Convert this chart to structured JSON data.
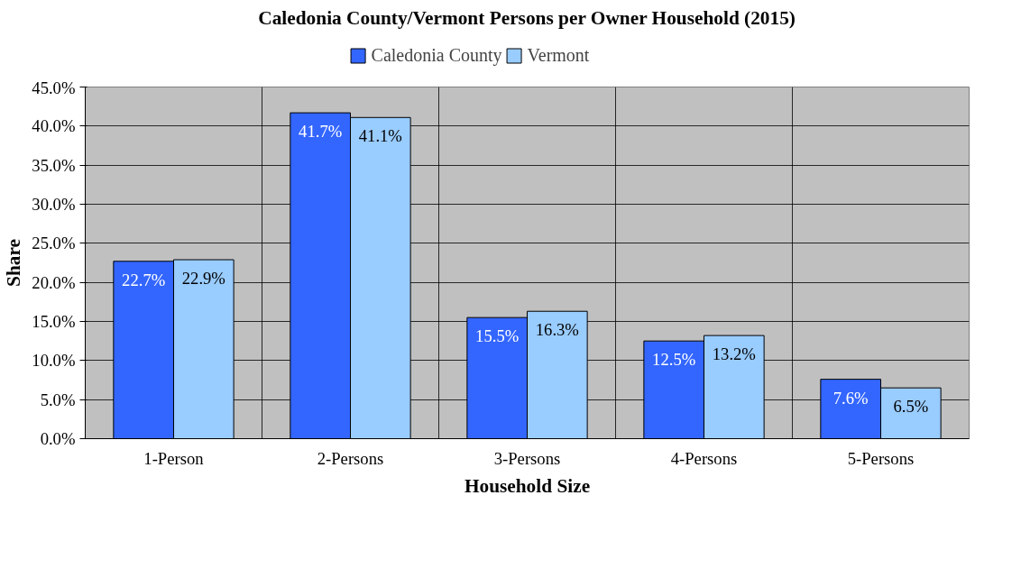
{
  "chart_data": {
    "type": "bar",
    "title": "Caledonia County/Vermont Persons per Owner Household (2015)",
    "xlabel": "Household Size",
    "ylabel": "Share",
    "categories": [
      "1-Person",
      "2-Persons",
      "3-Persons",
      "4-Persons",
      "5-Persons"
    ],
    "series": [
      {
        "name": "Caledonia County",
        "color": "#3366ff",
        "values": [
          22.7,
          41.7,
          15.5,
          12.5,
          7.6
        ],
        "value_labels": [
          "22.7%",
          "41.7%",
          "15.5%",
          "12.5%",
          "7.6%"
        ]
      },
      {
        "name": "Vermont",
        "color": "#99ccff",
        "values": [
          22.9,
          41.1,
          16.3,
          13.2,
          6.5
        ],
        "value_labels": [
          "22.9%",
          "41.1%",
          "16.3%",
          "13.2%",
          "6.5%"
        ]
      }
    ],
    "ylim": [
      0,
      45
    ],
    "yticks": [
      {
        "value": 0,
        "label": "0.0%"
      },
      {
        "value": 5,
        "label": "5.0%"
      },
      {
        "value": 10,
        "label": "10.0%"
      },
      {
        "value": 15,
        "label": "15.0%"
      },
      {
        "value": 20,
        "label": "20.0%"
      },
      {
        "value": 25,
        "label": "25.0%"
      },
      {
        "value": 30,
        "label": "30.0%"
      },
      {
        "value": 35,
        "label": "35.0%"
      },
      {
        "value": 40,
        "label": "40.0%"
      },
      {
        "value": 45,
        "label": "45.0%"
      }
    ],
    "grid": true,
    "legend": "top"
  }
}
